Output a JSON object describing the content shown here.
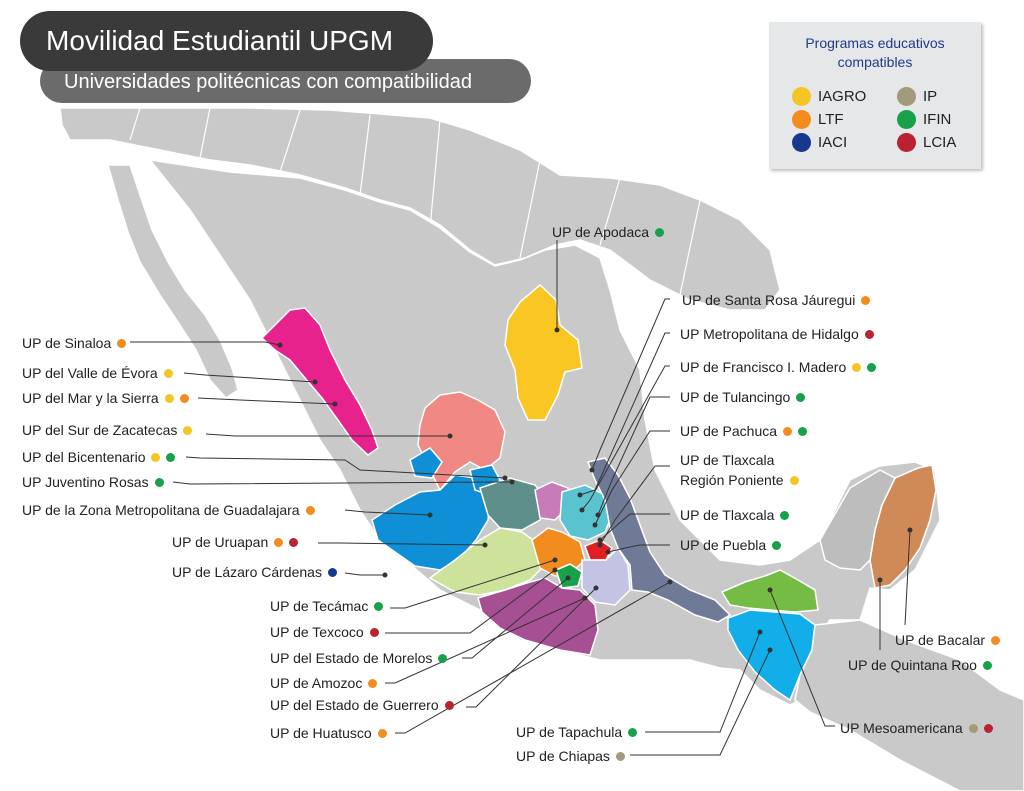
{
  "title": "Movilidad Estudiantil UPGM",
  "subtitle": "Universidades politécnicas con compatibilidad",
  "legend": {
    "title_line1": "Programas educativos",
    "title_line2": "compatibles",
    "items": [
      {
        "label": "IAGRO",
        "color": "#f5c623"
      },
      {
        "label": "LTF",
        "color": "#f28c1e"
      },
      {
        "label": "IACI",
        "color": "#16398f"
      },
      {
        "label": "IP",
        "color": "#a39a7a"
      },
      {
        "label": "IFIN",
        "color": "#16a14a"
      },
      {
        "label": "LCIA",
        "color": "#b8232f"
      }
    ]
  },
  "colors": {
    "base_land": "#c9c9c9",
    "borders": "#ffffff",
    "leader_lines": "#333333"
  },
  "universities": [
    {
      "name": "UP de Apodaca",
      "programs": [
        "IFIN"
      ]
    },
    {
      "name": "UP de Santa Rosa Jáuregui",
      "programs": [
        "LTF"
      ]
    },
    {
      "name": "UP Metropolitana de Hidalgo",
      "programs": [
        "LCIA"
      ]
    },
    {
      "name": "UP de Francisco I. Madero",
      "programs": [
        "IAGRO",
        "IFIN"
      ]
    },
    {
      "name": "UP de Tulancingo",
      "programs": [
        "IFIN"
      ]
    },
    {
      "name": "UP de Pachuca",
      "programs": [
        "LTF",
        "IFIN"
      ]
    },
    {
      "name": "UP de Tlaxcala",
      "name_line2": "Región Poniente",
      "programs": [
        "IAGRO"
      ]
    },
    {
      "name": "UP de Tlaxcala",
      "programs": [
        "IFIN"
      ]
    },
    {
      "name": "UP de Puebla",
      "programs": [
        "IFIN"
      ]
    },
    {
      "name": "UP de Sinaloa",
      "programs": [
        "LTF"
      ]
    },
    {
      "name": "UP del Valle de Évora",
      "programs": [
        "IAGRO"
      ]
    },
    {
      "name": "UP del Mar y la Sierra",
      "programs": [
        "IAGRO",
        "LTF"
      ]
    },
    {
      "name": "UP del Sur de Zacatecas",
      "programs": [
        "IAGRO"
      ]
    },
    {
      "name": "UP del Bicentenario",
      "programs": [
        "IAGRO",
        "IFIN"
      ]
    },
    {
      "name": "UP Juventino Rosas",
      "programs": [
        "IFIN"
      ]
    },
    {
      "name": "UP de la Zona Metropolitana de Guadalajara",
      "programs": [
        "LTF"
      ]
    },
    {
      "name": "UP de Uruapan",
      "programs": [
        "LTF",
        "LCIA"
      ]
    },
    {
      "name": "UP de Lázaro Cárdenas",
      "programs": [
        "IACI"
      ]
    },
    {
      "name": "UP de Tecámac",
      "programs": [
        "IFIN"
      ]
    },
    {
      "name": "UP de Texcoco",
      "programs": [
        "LCIA"
      ]
    },
    {
      "name": "UP del Estado de Morelos",
      "programs": [
        "IFIN"
      ]
    },
    {
      "name": "UP de Amozoc",
      "programs": [
        "LTF"
      ]
    },
    {
      "name": "UP del Estado de Guerrero",
      "programs": [
        "LCIA"
      ]
    },
    {
      "name": "UP de Huatusco",
      "programs": [
        "LTF"
      ]
    },
    {
      "name": "UP de Tapachula",
      "programs": [
        "IFIN"
      ]
    },
    {
      "name": "UP de Chiapas",
      "programs": [
        "IP"
      ]
    },
    {
      "name": "UP Mesoamericana",
      "programs": [
        "IP",
        "LCIA"
      ]
    },
    {
      "name": "UP de Bacalar",
      "programs": [
        "LTF"
      ]
    },
    {
      "name": "UP de Quintana Roo",
      "programs": [
        "IFIN"
      ]
    }
  ],
  "states": [
    {
      "name": "Sinaloa",
      "color": "#e8228c"
    },
    {
      "name": "Zacatecas",
      "color": "#f08884"
    },
    {
      "name": "Nuevo León",
      "color": "#f9c623"
    },
    {
      "name": "Jalisco",
      "color": "#0f8fd6"
    },
    {
      "name": "Aguascalientes",
      "color": "#0f8fd6"
    },
    {
      "name": "Guanajuato",
      "color": "#5f8f8a"
    },
    {
      "name": "Querétaro",
      "color": "#c77bb8"
    },
    {
      "name": "Hidalgo",
      "color": "#59c3cf"
    },
    {
      "name": "Michoacán",
      "color": "#cde39b"
    },
    {
      "name": "Estado de México",
      "color": "#f28c1e"
    },
    {
      "name": "Morelos",
      "color": "#16a14a"
    },
    {
      "name": "Tlaxcala",
      "color": "#e11f25"
    },
    {
      "name": "Puebla",
      "color": "#c3c4e3"
    },
    {
      "name": "Veracruz",
      "color": "#6f7a96"
    },
    {
      "name": "Guerrero",
      "color": "#a64f93"
    },
    {
      "name": "Tabasco",
      "color": "#74bc44"
    },
    {
      "name": "Chiapas",
      "color": "#12aee9"
    },
    {
      "name": "Quintana Roo",
      "color": "#cf8a57"
    }
  ]
}
